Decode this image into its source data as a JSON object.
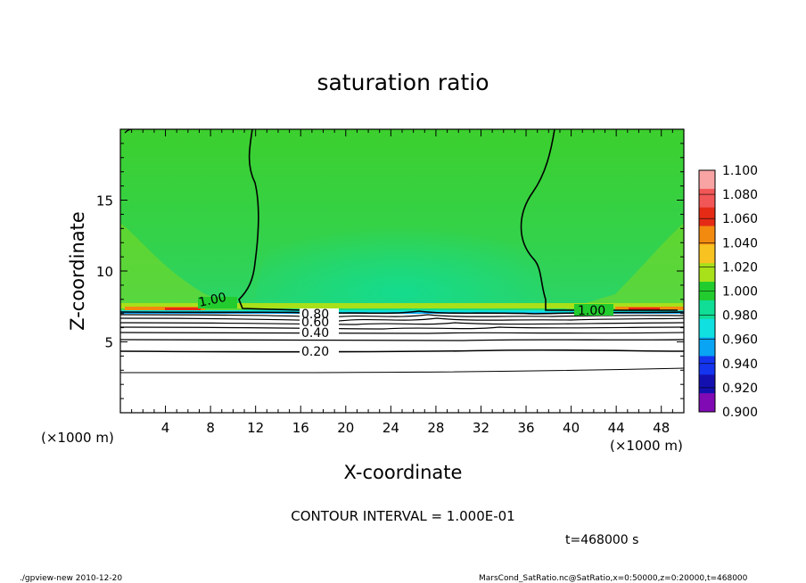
{
  "chart_data": {
    "type": "heatmap",
    "title": "saturation ratio",
    "xlabel": "X-coordinate",
    "ylabel": "Z-coordinate",
    "x_unit": "(×1000 m)",
    "y_unit": "(×1000 m)",
    "xlim": [
      0,
      50
    ],
    "ylim": [
      0,
      20
    ],
    "x_ticks": [
      4,
      8,
      12,
      16,
      20,
      24,
      28,
      32,
      36,
      40,
      44,
      48
    ],
    "y_ticks": [
      5,
      10,
      15
    ],
    "colorbar": {
      "levels": [
        "1.100",
        "1.080",
        "1.060",
        "1.040",
        "1.020",
        "1.000",
        "0.980",
        "0.960",
        "0.940",
        "0.920",
        "0.900"
      ],
      "colors": [
        "#f8a4a4",
        "#f25757",
        "#e52b16",
        "#f38a10",
        "#f8c320",
        "#a8e01a",
        "#22cc2e",
        "#10dd96",
        "#10e0e0",
        "#0aa4f4",
        "#1434ee",
        "#1410b0",
        "#800ab4"
      ]
    },
    "contour_labels": [
      {
        "text": "1.00",
        "x": 8.5,
        "y": 7.45
      },
      {
        "text": "1.00",
        "x": 41.8,
        "y": 7.1
      },
      {
        "text": "0.80",
        "x": 17.5,
        "y": 6.75
      },
      {
        "text": "0.60",
        "x": 17.5,
        "y": 6.4
      },
      {
        "text": "0.40",
        "x": 17.5,
        "y": 5.6
      },
      {
        "text": "0.20",
        "x": 17.5,
        "y": 4.35
      }
    ],
    "contour_interval_text": "CONTOUR INTERVAL = 1.000E-01",
    "time_text": "t=468000 s"
  },
  "footer": {
    "left": "./gpview-new   2010-12-20",
    "right": "MarsCond_SatRatio.nc@SatRatio,x=0:50000,z=0:20000,t=468000"
  }
}
